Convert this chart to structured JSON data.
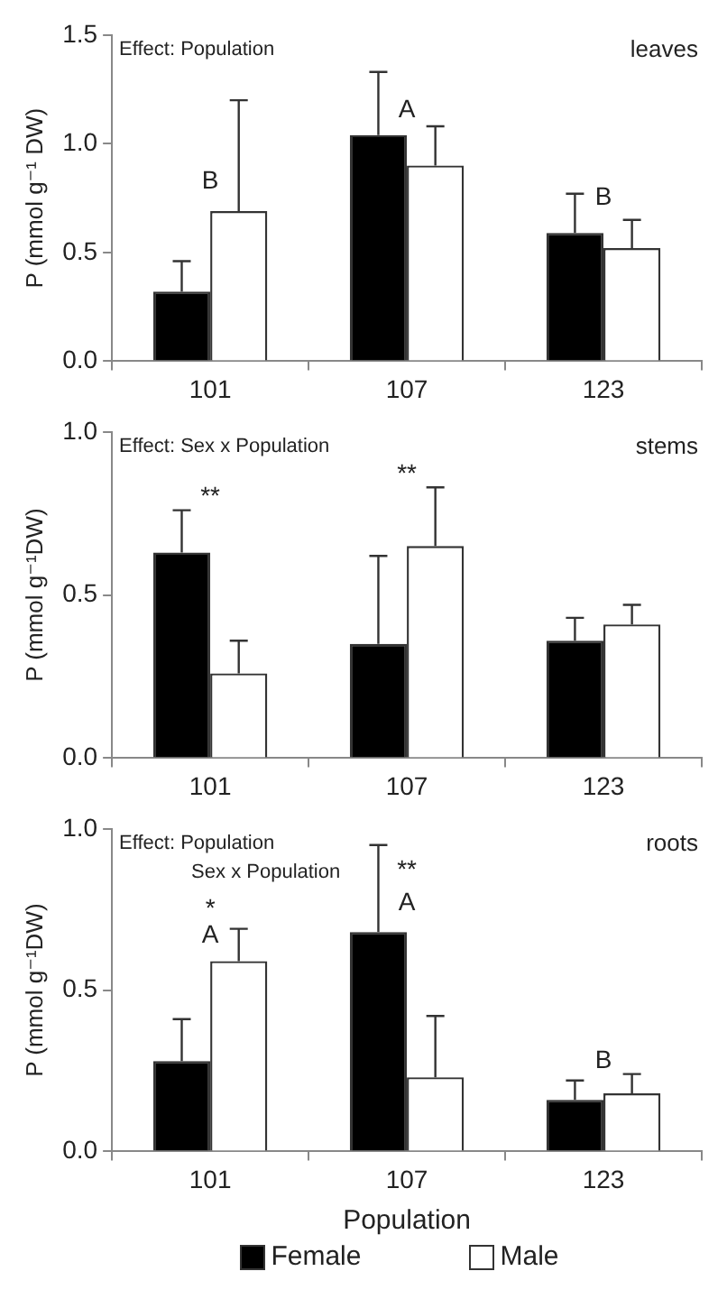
{
  "chart_data": [
    {
      "type": "bar",
      "title": "leaves",
      "annotations": [
        "Effect: Population",
        "B",
        "A",
        "B"
      ],
      "ylabel": "P (mmol g⁻¹ DW)",
      "categories": [
        "101",
        "107",
        "123"
      ],
      "series": [
        {
          "color": "#000000",
          "values": [
            0.32,
            1.04,
            0.59
          ],
          "errors": [
            [
              0.32,
              0.46
            ],
            [
              1.04,
              1.33
            ],
            [
              0.59,
              0.77
            ]
          ]
        },
        {
          "color": "#ffffff",
          "values": [
            0.69,
            0.9,
            0.52
          ],
          "errors": [
            [
              0.69,
              1.2
            ],
            [
              0.9,
              1.08
            ],
            [
              0.52,
              0.65
            ]
          ]
        }
      ],
      "ylim": [
        0,
        1.5
      ],
      "yticks": [
        {
          "value": 0,
          "label": "0.0"
        },
        {
          "value": 0.5,
          "label": "0.5"
        },
        {
          "value": 1,
          "label": "1.0"
        },
        {
          "value": 1.5,
          "label": "1.5"
        }
      ],
      "grid": false,
      "legend": false
    },
    {
      "type": "bar",
      "title": "stems",
      "annotations": [
        "Effect: Sex x Population",
        "**",
        "**"
      ],
      "ylabel": "P (mmol g⁻¹DW)",
      "categories": [
        "101",
        "107",
        "123"
      ],
      "series": [
        {
          "color": "#000000",
          "values": [
            0.63,
            0.35,
            0.36
          ],
          "errors": [
            [
              0.63,
              0.76
            ],
            [
              0.35,
              0.62
            ],
            [
              0.36,
              0.43
            ]
          ]
        },
        {
          "color": "#ffffff",
          "values": [
            0.26,
            0.65,
            0.41
          ],
          "errors": [
            [
              0.26,
              0.36
            ],
            [
              0.65,
              0.83
            ],
            [
              0.41,
              0.47
            ]
          ]
        }
      ],
      "ylim": [
        0,
        1
      ],
      "yticks": [
        {
          "value": 0,
          "label": "0.0"
        },
        {
          "value": 0.5,
          "label": "0.5"
        },
        {
          "value": 1,
          "label": "1.0"
        }
      ],
      "grid": false,
      "legend": false
    },
    {
      "type": "bar",
      "title": "roots",
      "annotations": [
        "Effect: Population",
        "Sex x Population",
        "*",
        "A",
        "**",
        "A",
        "B"
      ],
      "xlabel": "Population",
      "ylabel": "P (mmol g⁻¹DW)",
      "categories": [
        "101",
        "107",
        "123"
      ],
      "series": [
        {
          "name": "Female",
          "color": "#000000",
          "values": [
            0.28,
            0.68,
            0.16
          ],
          "errors": [
            [
              0.28,
              0.41
            ],
            [
              0.68,
              0.95
            ],
            [
              0.16,
              0.22
            ]
          ]
        },
        {
          "name": "Male",
          "color": "#ffffff",
          "values": [
            0.59,
            0.23,
            0.18
          ],
          "errors": [
            [
              0.59,
              0.69
            ],
            [
              0.23,
              0.42
            ],
            [
              0.18,
              0.24
            ]
          ]
        }
      ],
      "ylim": [
        0,
        1
      ],
      "yticks": [
        {
          "value": 0,
          "label": "0.0"
        },
        {
          "value": 0.5,
          "label": "0.5"
        },
        {
          "value": 1,
          "label": "1.0"
        }
      ],
      "grid": false,
      "legend": "bottom"
    }
  ]
}
